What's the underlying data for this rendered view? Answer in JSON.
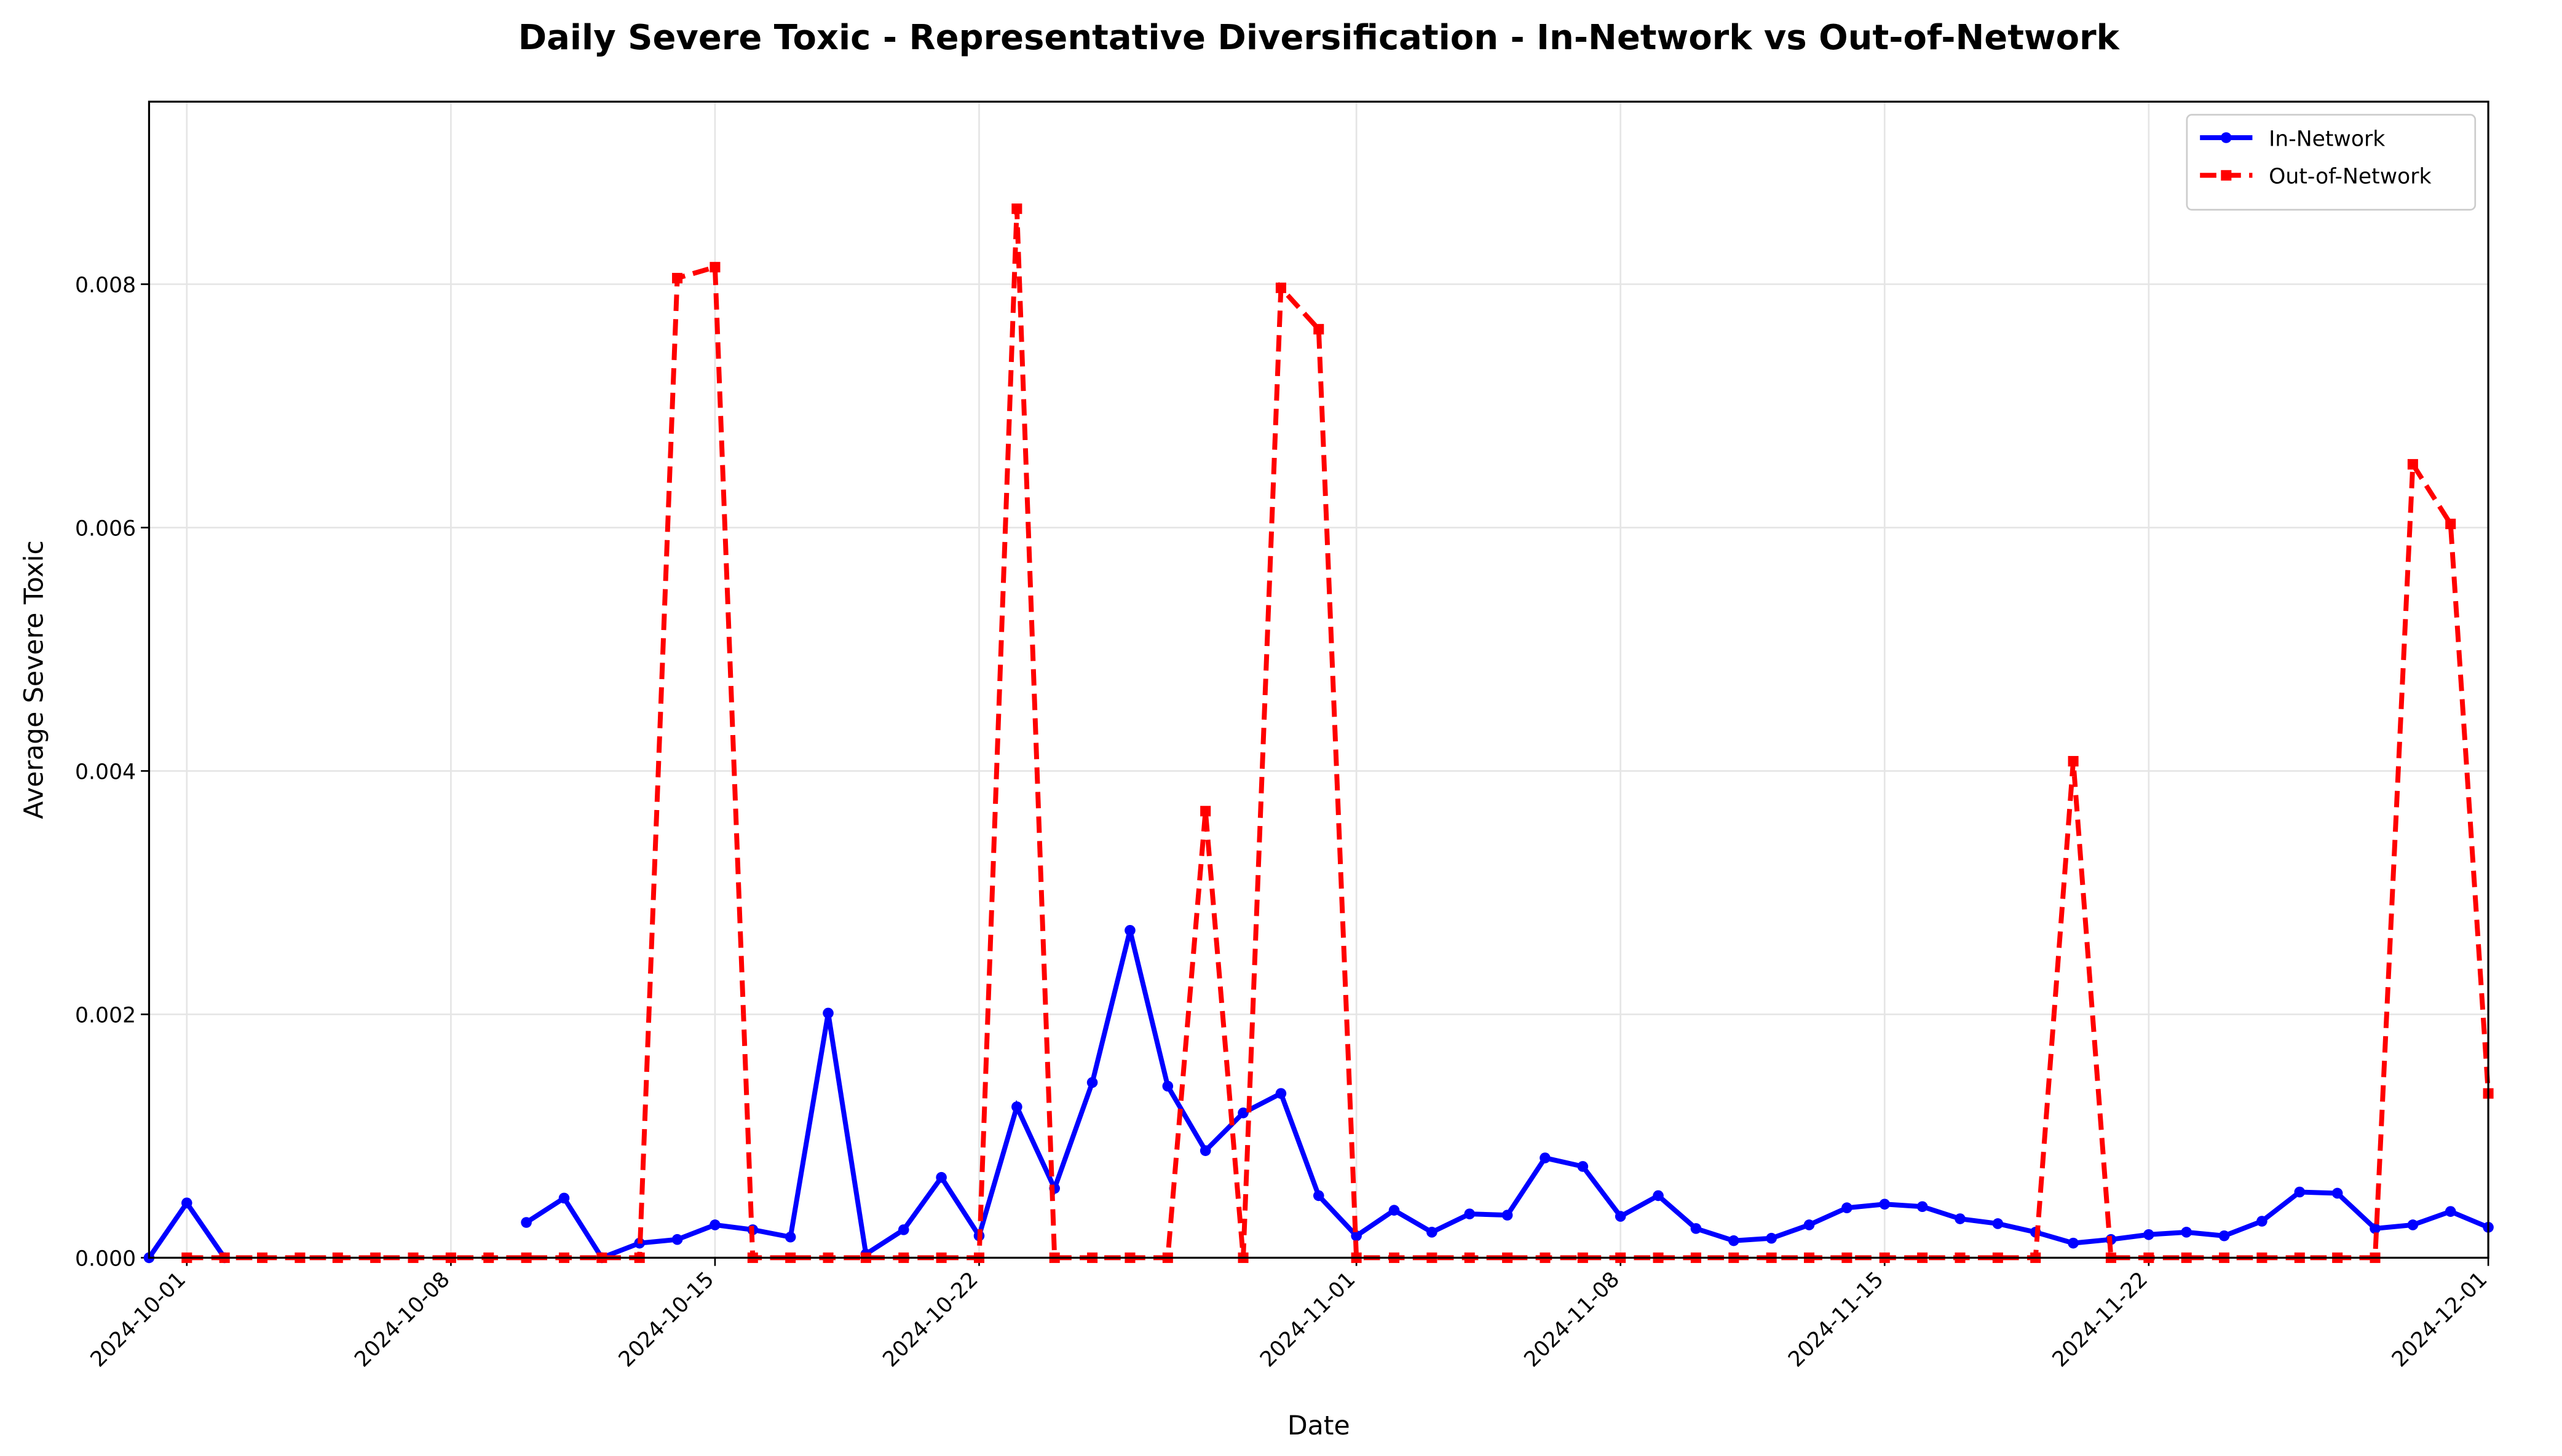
{
  "chart_data": {
    "type": "line",
    "title": "Daily Severe Toxic - Representative Diversification - In-Network vs Out-of-Network",
    "x_label": "Date",
    "y_label": "Average Severe Toxic",
    "x": [
      "2024-09-30",
      "2024-10-01",
      "2024-10-02",
      "2024-10-03",
      "2024-10-04",
      "2024-10-05",
      "2024-10-06",
      "2024-10-07",
      "2024-10-08",
      "2024-10-09",
      "2024-10-10",
      "2024-10-11",
      "2024-10-12",
      "2024-10-13",
      "2024-10-14",
      "2024-10-15",
      "2024-10-16",
      "2024-10-17",
      "2024-10-18",
      "2024-10-19",
      "2024-10-20",
      "2024-10-21",
      "2024-10-22",
      "2024-10-23",
      "2024-10-24",
      "2024-10-25",
      "2024-10-26",
      "2024-10-27",
      "2024-10-28",
      "2024-10-29",
      "2024-10-30",
      "2024-10-31",
      "2024-11-01",
      "2024-11-02",
      "2024-11-03",
      "2024-11-04",
      "2024-11-05",
      "2024-11-06",
      "2024-11-07",
      "2024-11-08",
      "2024-11-09",
      "2024-11-10",
      "2024-11-11",
      "2024-11-12",
      "2024-11-13",
      "2024-11-14",
      "2024-11-15",
      "2024-11-16",
      "2024-11-17",
      "2024-11-18",
      "2024-11-19",
      "2024-11-20",
      "2024-11-21",
      "2024-11-22",
      "2024-11-23",
      "2024-11-24",
      "2024-11-25",
      "2024-11-26",
      "2024-11-27",
      "2024-11-28",
      "2024-11-29",
      "2024-11-30",
      "2024-12-01"
    ],
    "series": [
      {
        "name": "In-Network",
        "color": "#0000ff",
        "marker": "circle",
        "dash": "solid",
        "values": [
          0,
          0.00045,
          0,
          null,
          null,
          null,
          null,
          null,
          null,
          null,
          0.00029,
          0.00049,
          0,
          0.00012,
          0.00015,
          0.00027,
          0.00023,
          0.00017,
          0.00201,
          3e-05,
          0.00023,
          0.00066,
          0.00018,
          0.00124,
          0.00057,
          0.00144,
          0.00269,
          0.00141,
          0.00088,
          0.00119,
          0.00135,
          0.00051,
          0.00018,
          0.00039,
          0.00021,
          0.00036,
          0.00035,
          0.00082,
          0.00075,
          0.00034,
          0.00051,
          0.00024,
          0.00014,
          0.00016,
          0.00027,
          0.00041,
          0.00044,
          0.00042,
          0.00032,
          0.00028,
          0.00021,
          0.00012,
          0.00015,
          0.00019,
          0.00021,
          0.00018,
          0.0003,
          0.00054,
          0.00053,
          0.00024,
          0.00027,
          0.00038,
          0.00025
        ]
      },
      {
        "name": "Out-of-Network",
        "color": "#ff0000",
        "marker": "square",
        "dash": "dashed",
        "values": [
          null,
          0,
          0,
          0,
          0,
          0,
          0,
          0,
          0,
          0,
          0,
          0,
          0,
          0,
          0.00805,
          0.00814,
          0,
          0,
          0,
          0,
          0,
          0,
          0,
          0.00862,
          0,
          0,
          0,
          0,
          0.00367,
          0,
          0.00797,
          0.00763,
          0,
          0,
          0,
          0,
          0,
          0,
          0,
          0,
          0,
          0,
          0,
          0,
          0,
          0,
          0,
          0,
          0,
          0,
          0,
          0.00408,
          0,
          0,
          0,
          0,
          0,
          0,
          0,
          0,
          0.00652,
          0.00603,
          0.00135
        ]
      }
    ],
    "xlim": [
      "2024-09-30",
      "2024-12-01"
    ],
    "xticks": [
      "2024-10-01",
      "2024-10-08",
      "2024-10-15",
      "2024-10-22",
      "2024-11-01",
      "2024-11-08",
      "2024-11-15",
      "2024-11-22",
      "2024-12-01"
    ],
    "ylim": [
      0,
      0.0095
    ],
    "yticks": [
      {
        "value": 0,
        "label": "0.000"
      },
      {
        "value": 0.002,
        "label": "0.002"
      },
      {
        "value": 0.004,
        "label": "0.004"
      },
      {
        "value": 0.006,
        "label": "0.006"
      },
      {
        "value": 0.008,
        "label": "0.008"
      }
    ],
    "grid": true,
    "legend": "upper right"
  }
}
